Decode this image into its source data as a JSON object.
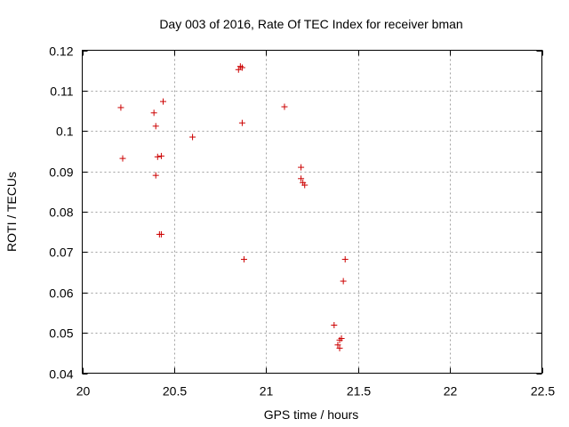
{
  "chart_data": {
    "type": "scatter",
    "title": "Day 003 of 2016, Rate Of TEC Index for receiver bman",
    "xlabel": "GPS time / hours",
    "ylabel": "ROTI / TECUs",
    "xlim": [
      20,
      22.5
    ],
    "ylim": [
      0.04,
      0.12
    ],
    "xticks": [
      20,
      20.5,
      21,
      21.5,
      22,
      22.5
    ],
    "xtick_labels": [
      "20",
      "20.5",
      "21",
      "21.5",
      "22",
      "22.5"
    ],
    "yticks": [
      0.04,
      0.05,
      0.06,
      0.07,
      0.08,
      0.09,
      0.1,
      0.11,
      0.12
    ],
    "ytick_labels": [
      "0.04",
      "0.05",
      "0.06",
      "0.07",
      "0.08",
      "0.09",
      "0.1",
      "0.11",
      "0.12"
    ],
    "grid": true,
    "marker": "+",
    "marker_color": "#cc0000",
    "series": [
      {
        "name": "ROTI",
        "points": [
          [
            20.21,
            0.1058
          ],
          [
            20.22,
            0.0932
          ],
          [
            20.39,
            0.1045
          ],
          [
            20.4,
            0.1012
          ],
          [
            20.4,
            0.089
          ],
          [
            20.41,
            0.0936
          ],
          [
            20.43,
            0.0938
          ],
          [
            20.44,
            0.1073
          ],
          [
            20.42,
            0.0744
          ],
          [
            20.43,
            0.0744
          ],
          [
            20.6,
            0.0985
          ],
          [
            20.85,
            0.1152
          ],
          [
            20.86,
            0.116
          ],
          [
            20.87,
            0.1157
          ],
          [
            20.87,
            0.102
          ],
          [
            20.88,
            0.0682
          ],
          [
            21.1,
            0.106
          ],
          [
            21.19,
            0.091
          ],
          [
            21.19,
            0.0882
          ],
          [
            21.2,
            0.0872
          ],
          [
            21.21,
            0.0866
          ],
          [
            21.37,
            0.0519
          ],
          [
            21.39,
            0.047
          ],
          [
            21.4,
            0.0482
          ],
          [
            21.4,
            0.0462
          ],
          [
            21.41,
            0.0486
          ],
          [
            21.42,
            0.0628
          ],
          [
            21.43,
            0.0682
          ]
        ]
      }
    ]
  }
}
